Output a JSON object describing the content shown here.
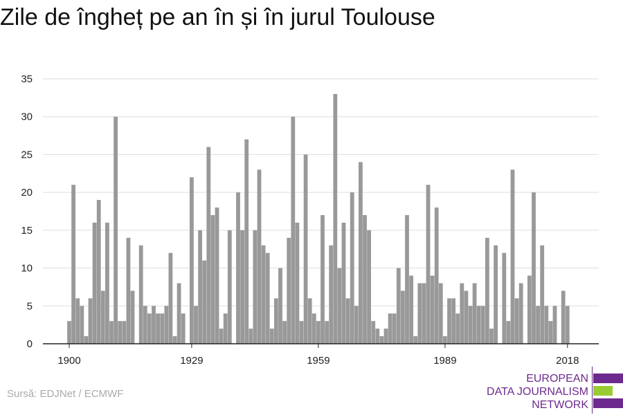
{
  "title": "Zile de îngheț pe an în și în jurul Toulouse",
  "source": "Sursă: EDJNet / ECMWF",
  "logo": {
    "line1": "EUROPEAN",
    "line2": "DATA JOURNALISM",
    "line3": "NETWORK"
  },
  "colors": {
    "bar": "#999999",
    "grid": "#dddddd",
    "axis": "#222222",
    "brand_purple": "#6d2a8e",
    "brand_green": "#99cc33"
  },
  "chart_data": {
    "type": "bar",
    "title": "Zile de îngheț pe an în și în jurul Toulouse",
    "xlabel": "",
    "ylabel": "",
    "ylim": [
      0,
      35
    ],
    "xlim": [
      1900,
      2018
    ],
    "y_ticks": [
      0,
      5,
      10,
      15,
      20,
      25,
      30,
      35
    ],
    "x_ticks": [
      1900,
      1929,
      1959,
      1989,
      2018
    ],
    "grid": true,
    "legend": "none",
    "x": [
      1900,
      1901,
      1902,
      1903,
      1904,
      1905,
      1906,
      1907,
      1908,
      1909,
      1910,
      1911,
      1912,
      1913,
      1914,
      1915,
      1916,
      1917,
      1918,
      1919,
      1920,
      1921,
      1922,
      1923,
      1924,
      1925,
      1926,
      1927,
      1928,
      1929,
      1930,
      1931,
      1932,
      1933,
      1934,
      1935,
      1936,
      1937,
      1938,
      1939,
      1940,
      1941,
      1942,
      1943,
      1944,
      1945,
      1946,
      1947,
      1948,
      1949,
      1950,
      1951,
      1952,
      1953,
      1954,
      1955,
      1956,
      1957,
      1958,
      1959,
      1960,
      1961,
      1962,
      1963,
      1964,
      1965,
      1966,
      1967,
      1968,
      1969,
      1970,
      1971,
      1972,
      1973,
      1974,
      1975,
      1976,
      1977,
      1978,
      1979,
      1980,
      1981,
      1982,
      1983,
      1984,
      1985,
      1986,
      1987,
      1988,
      1989,
      1990,
      1991,
      1992,
      1993,
      1994,
      1995,
      1996,
      1997,
      1998,
      1999,
      2000,
      2001,
      2002,
      2003,
      2004,
      2005,
      2006,
      2007,
      2008,
      2009,
      2010,
      2011,
      2012,
      2013,
      2014,
      2015,
      2016,
      2017,
      2018
    ],
    "values": [
      3,
      21,
      6,
      5,
      1,
      6,
      16,
      19,
      7,
      16,
      3,
      30,
      3,
      3,
      14,
      7,
      0,
      13,
      5,
      4,
      5,
      4,
      4,
      5,
      12,
      1,
      8,
      4,
      0,
      22,
      5,
      15,
      11,
      26,
      17,
      18,
      2,
      4,
      15,
      0,
      20,
      15,
      27,
      2,
      15,
      23,
      13,
      12,
      2,
      6,
      10,
      3,
      14,
      30,
      16,
      3,
      25,
      6,
      4,
      3,
      17,
      3,
      13,
      33,
      10,
      16,
      6,
      20,
      5,
      24,
      17,
      15,
      3,
      2,
      1,
      2,
      4,
      4,
      10,
      7,
      17,
      9,
      1,
      8,
      8,
      21,
      9,
      18,
      8,
      1,
      6,
      6,
      4,
      8,
      7,
      5,
      8,
      5,
      5,
      14,
      2,
      13,
      0,
      12,
      3,
      23,
      6,
      8,
      0,
      9,
      20,
      5,
      13,
      5,
      3,
      5,
      0,
      7,
      5
    ]
  }
}
